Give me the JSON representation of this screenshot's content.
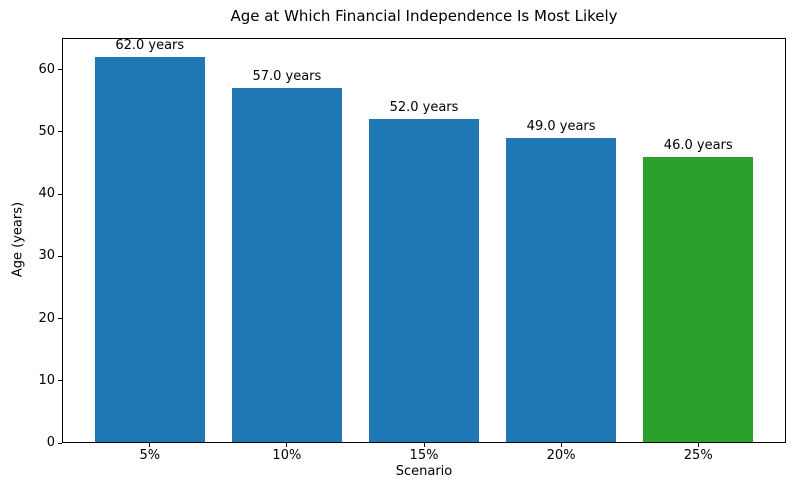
{
  "chart_data": {
    "type": "bar",
    "title": "Age at Which Financial Independence Is Most Likely",
    "xlabel": "Scenario",
    "ylabel": "Age (years)",
    "categories": [
      "5%",
      "10%",
      "15%",
      "20%",
      "25%"
    ],
    "values": [
      62.0,
      57.0,
      52.0,
      49.0,
      46.0
    ],
    "bar_labels": [
      "62.0 years",
      "57.0 years",
      "52.0 years",
      "49.0 years",
      "46.0 years"
    ],
    "bar_colors": [
      "#1f77b4",
      "#1f77b4",
      "#1f77b4",
      "#1f77b4",
      "#2ca02c"
    ],
    "ylim": [
      0,
      65.1
    ],
    "yticks": [
      0,
      10,
      20,
      30,
      40,
      50,
      60
    ],
    "grid": false,
    "legend": "none",
    "background_color": "#ffffff",
    "axis_color": "#000000"
  }
}
